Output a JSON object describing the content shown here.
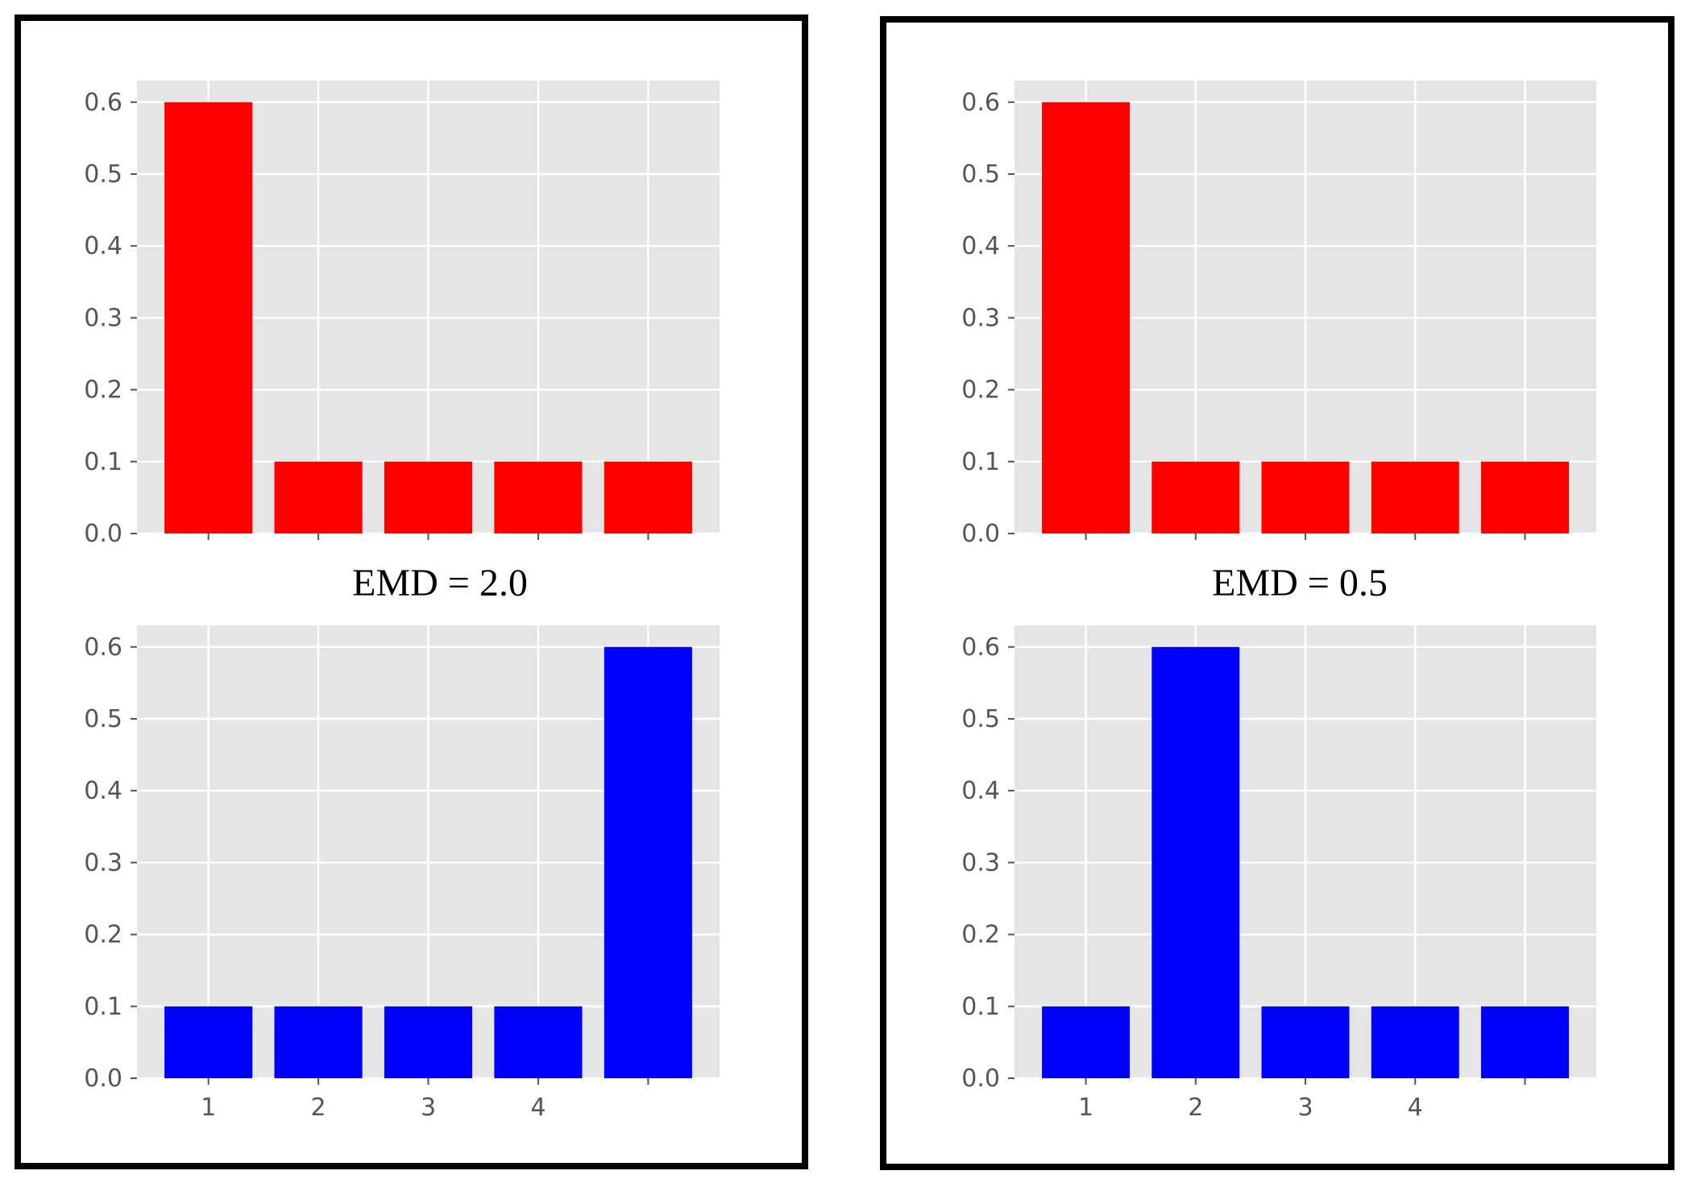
{
  "panels": [
    {
      "emd_label": "EMD = 2.0"
    },
    {
      "emd_label": "EMD = 0.5"
    }
  ],
  "colors": {
    "red": "#ff0000",
    "blue": "#0000ff",
    "plot_bg": "#e5e5e5",
    "grid": "#ffffff"
  },
  "chart_data": [
    {
      "type": "bar",
      "panel": "left",
      "position": "top",
      "categories": [
        "",
        "",
        "",
        "",
        ""
      ],
      "values": [
        0.6,
        0.1,
        0.1,
        0.1,
        0.1
      ],
      "color": "#ff0000",
      "ylim": [
        0,
        0.63
      ],
      "yticks": [
        "0.0",
        "0.1",
        "0.2",
        "0.3",
        "0.4",
        "0.5",
        "0.6"
      ],
      "grid": true
    },
    {
      "type": "bar",
      "panel": "left",
      "position": "bottom",
      "categories": [
        "1",
        "2",
        "3",
        "4",
        ""
      ],
      "values": [
        0.1,
        0.1,
        0.1,
        0.1,
        0.6
      ],
      "color": "#0000ff",
      "ylim": [
        0,
        0.63
      ],
      "yticks": [
        "0.0",
        "0.1",
        "0.2",
        "0.3",
        "0.4",
        "0.5",
        "0.6"
      ],
      "grid": true
    },
    {
      "type": "bar",
      "panel": "right",
      "position": "top",
      "categories": [
        "",
        "",
        "",
        "",
        ""
      ],
      "values": [
        0.6,
        0.1,
        0.1,
        0.1,
        0.1
      ],
      "color": "#ff0000",
      "ylim": [
        0,
        0.63
      ],
      "yticks": [
        "0.0",
        "0.1",
        "0.2",
        "0.3",
        "0.4",
        "0.5",
        "0.6"
      ],
      "grid": true
    },
    {
      "type": "bar",
      "panel": "right",
      "position": "bottom",
      "categories": [
        "1",
        "2",
        "3",
        "4",
        ""
      ],
      "values": [
        0.1,
        0.6,
        0.1,
        0.1,
        0.1
      ],
      "color": "#0000ff",
      "ylim": [
        0,
        0.63
      ],
      "yticks": [
        "0.0",
        "0.1",
        "0.2",
        "0.3",
        "0.4",
        "0.5",
        "0.6"
      ],
      "grid": true
    }
  ]
}
